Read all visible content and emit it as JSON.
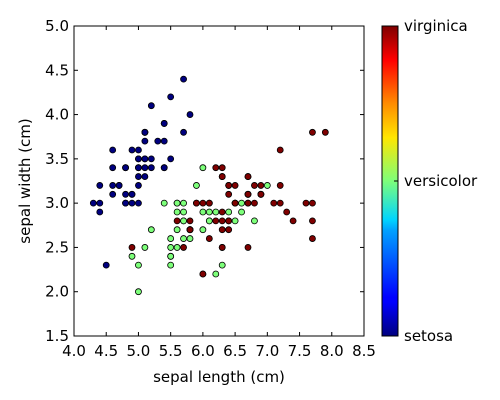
{
  "chart_data": {
    "type": "scatter",
    "title": "",
    "xlabel": "sepal length (cm)",
    "ylabel": "sepal width (cm)",
    "xlim": [
      4.0,
      8.5
    ],
    "ylim": [
      1.5,
      5.0
    ],
    "xticks": [
      "4.0",
      "4.5",
      "5.0",
      "5.5",
      "6.0",
      "6.5",
      "7.0",
      "7.5",
      "8.0",
      "8.5"
    ],
    "yticks": [
      "1.5",
      "2.0",
      "2.5",
      "3.0",
      "3.5",
      "4.0",
      "4.5",
      "5.0"
    ],
    "grid": false,
    "colormap": "jet",
    "colorbar": {
      "labels": [
        {
          "text": "setosa",
          "value": 0
        },
        {
          "text": "versicolor",
          "value": 1
        },
        {
          "text": "virginica",
          "value": 2
        }
      ]
    },
    "classes": [
      {
        "name": "setosa",
        "value": 0,
        "color": "#00007f"
      },
      {
        "name": "versicolor",
        "value": 1,
        "color": "#7dff7a"
      },
      {
        "name": "virginica",
        "value": 2,
        "color": "#7f0000"
      }
    ],
    "points": [
      {
        "x": 5.1,
        "y": 3.5,
        "c": 0
      },
      {
        "x": 4.9,
        "y": 3.0,
        "c": 0
      },
      {
        "x": 4.7,
        "y": 3.2,
        "c": 0
      },
      {
        "x": 4.6,
        "y": 3.1,
        "c": 0
      },
      {
        "x": 5.0,
        "y": 3.6,
        "c": 0
      },
      {
        "x": 5.4,
        "y": 3.9,
        "c": 0
      },
      {
        "x": 4.6,
        "y": 3.4,
        "c": 0
      },
      {
        "x": 5.0,
        "y": 3.4,
        "c": 0
      },
      {
        "x": 4.4,
        "y": 2.9,
        "c": 0
      },
      {
        "x": 4.9,
        "y": 3.1,
        "c": 0
      },
      {
        "x": 5.4,
        "y": 3.7,
        "c": 0
      },
      {
        "x": 4.8,
        "y": 3.4,
        "c": 0
      },
      {
        "x": 4.8,
        "y": 3.0,
        "c": 0
      },
      {
        "x": 4.3,
        "y": 3.0,
        "c": 0
      },
      {
        "x": 5.8,
        "y": 4.0,
        "c": 0
      },
      {
        "x": 5.7,
        "y": 4.4,
        "c": 0
      },
      {
        "x": 5.4,
        "y": 3.9,
        "c": 0
      },
      {
        "x": 5.1,
        "y": 3.5,
        "c": 0
      },
      {
        "x": 5.7,
        "y": 3.8,
        "c": 0
      },
      {
        "x": 5.1,
        "y": 3.8,
        "c": 0
      },
      {
        "x": 5.4,
        "y": 3.4,
        "c": 0
      },
      {
        "x": 5.1,
        "y": 3.7,
        "c": 0
      },
      {
        "x": 4.6,
        "y": 3.6,
        "c": 0
      },
      {
        "x": 5.1,
        "y": 3.3,
        "c": 0
      },
      {
        "x": 4.8,
        "y": 3.4,
        "c": 0
      },
      {
        "x": 5.0,
        "y": 3.0,
        "c": 0
      },
      {
        "x": 5.0,
        "y": 3.4,
        "c": 0
      },
      {
        "x": 5.2,
        "y": 3.5,
        "c": 0
      },
      {
        "x": 5.2,
        "y": 3.4,
        "c": 0
      },
      {
        "x": 4.7,
        "y": 3.2,
        "c": 0
      },
      {
        "x": 4.8,
        "y": 3.1,
        "c": 0
      },
      {
        "x": 5.4,
        "y": 3.4,
        "c": 0
      },
      {
        "x": 5.2,
        "y": 4.1,
        "c": 0
      },
      {
        "x": 5.5,
        "y": 4.2,
        "c": 0
      },
      {
        "x": 4.9,
        "y": 3.1,
        "c": 0
      },
      {
        "x": 5.0,
        "y": 3.2,
        "c": 0
      },
      {
        "x": 5.5,
        "y": 3.5,
        "c": 0
      },
      {
        "x": 4.9,
        "y": 3.6,
        "c": 0
      },
      {
        "x": 4.4,
        "y": 3.0,
        "c": 0
      },
      {
        "x": 5.1,
        "y": 3.4,
        "c": 0
      },
      {
        "x": 5.0,
        "y": 3.5,
        "c": 0
      },
      {
        "x": 4.5,
        "y": 2.3,
        "c": 0
      },
      {
        "x": 4.4,
        "y": 3.2,
        "c": 0
      },
      {
        "x": 5.0,
        "y": 3.5,
        "c": 0
      },
      {
        "x": 5.1,
        "y": 3.8,
        "c": 0
      },
      {
        "x": 4.8,
        "y": 3.0,
        "c": 0
      },
      {
        "x": 5.1,
        "y": 3.8,
        "c": 0
      },
      {
        "x": 4.6,
        "y": 3.2,
        "c": 0
      },
      {
        "x": 5.3,
        "y": 3.7,
        "c": 0
      },
      {
        "x": 5.0,
        "y": 3.3,
        "c": 0
      },
      {
        "x": 7.0,
        "y": 3.2,
        "c": 1
      },
      {
        "x": 6.4,
        "y": 3.2,
        "c": 1
      },
      {
        "x": 6.9,
        "y": 3.1,
        "c": 1
      },
      {
        "x": 5.5,
        "y": 2.3,
        "c": 1
      },
      {
        "x": 6.5,
        "y": 2.8,
        "c": 1
      },
      {
        "x": 5.7,
        "y": 2.8,
        "c": 1
      },
      {
        "x": 6.3,
        "y": 3.3,
        "c": 1
      },
      {
        "x": 4.9,
        "y": 2.4,
        "c": 1
      },
      {
        "x": 6.6,
        "y": 2.9,
        "c": 1
      },
      {
        "x": 5.2,
        "y": 2.7,
        "c": 1
      },
      {
        "x": 5.0,
        "y": 2.0,
        "c": 1
      },
      {
        "x": 5.9,
        "y": 3.0,
        "c": 1
      },
      {
        "x": 6.0,
        "y": 2.2,
        "c": 1
      },
      {
        "x": 6.1,
        "y": 2.9,
        "c": 1
      },
      {
        "x": 5.6,
        "y": 2.9,
        "c": 1
      },
      {
        "x": 6.7,
        "y": 3.1,
        "c": 1
      },
      {
        "x": 5.6,
        "y": 3.0,
        "c": 1
      },
      {
        "x": 5.8,
        "y": 2.7,
        "c": 1
      },
      {
        "x": 6.2,
        "y": 2.2,
        "c": 1
      },
      {
        "x": 5.6,
        "y": 2.5,
        "c": 1
      },
      {
        "x": 5.9,
        "y": 3.2,
        "c": 1
      },
      {
        "x": 6.1,
        "y": 2.8,
        "c": 1
      },
      {
        "x": 6.3,
        "y": 2.5,
        "c": 1
      },
      {
        "x": 6.1,
        "y": 2.8,
        "c": 1
      },
      {
        "x": 6.4,
        "y": 2.9,
        "c": 1
      },
      {
        "x": 6.6,
        "y": 3.0,
        "c": 1
      },
      {
        "x": 6.8,
        "y": 2.8,
        "c": 1
      },
      {
        "x": 6.7,
        "y": 3.0,
        "c": 1
      },
      {
        "x": 6.0,
        "y": 2.9,
        "c": 1
      },
      {
        "x": 5.7,
        "y": 2.6,
        "c": 1
      },
      {
        "x": 5.5,
        "y": 2.4,
        "c": 1
      },
      {
        "x": 5.5,
        "y": 2.4,
        "c": 1
      },
      {
        "x": 5.8,
        "y": 2.7,
        "c": 1
      },
      {
        "x": 6.0,
        "y": 2.7,
        "c": 1
      },
      {
        "x": 5.4,
        "y": 3.0,
        "c": 1
      },
      {
        "x": 6.0,
        "y": 3.4,
        "c": 1
      },
      {
        "x": 6.7,
        "y": 3.1,
        "c": 1
      },
      {
        "x": 6.3,
        "y": 2.3,
        "c": 1
      },
      {
        "x": 5.6,
        "y": 3.0,
        "c": 1
      },
      {
        "x": 5.5,
        "y": 2.5,
        "c": 1
      },
      {
        "x": 5.5,
        "y": 2.6,
        "c": 1
      },
      {
        "x": 6.1,
        "y": 3.0,
        "c": 1
      },
      {
        "x": 5.8,
        "y": 2.6,
        "c": 1
      },
      {
        "x": 5.0,
        "y": 2.3,
        "c": 1
      },
      {
        "x": 5.6,
        "y": 2.7,
        "c": 1
      },
      {
        "x": 5.7,
        "y": 3.0,
        "c": 1
      },
      {
        "x": 5.7,
        "y": 2.9,
        "c": 1
      },
      {
        "x": 6.2,
        "y": 2.9,
        "c": 1
      },
      {
        "x": 5.1,
        "y": 2.5,
        "c": 1
      },
      {
        "x": 5.7,
        "y": 2.8,
        "c": 1
      },
      {
        "x": 6.3,
        "y": 3.3,
        "c": 2
      },
      {
        "x": 5.8,
        "y": 2.7,
        "c": 2
      },
      {
        "x": 7.1,
        "y": 3.0,
        "c": 2
      },
      {
        "x": 6.3,
        "y": 2.9,
        "c": 2
      },
      {
        "x": 6.5,
        "y": 3.0,
        "c": 2
      },
      {
        "x": 7.6,
        "y": 3.0,
        "c": 2
      },
      {
        "x": 4.9,
        "y": 2.5,
        "c": 2
      },
      {
        "x": 7.3,
        "y": 2.9,
        "c": 2
      },
      {
        "x": 6.7,
        "y": 2.5,
        "c": 2
      },
      {
        "x": 7.2,
        "y": 3.6,
        "c": 2
      },
      {
        "x": 6.5,
        "y": 3.2,
        "c": 2
      },
      {
        "x": 6.4,
        "y": 2.7,
        "c": 2
      },
      {
        "x": 6.8,
        "y": 3.0,
        "c": 2
      },
      {
        "x": 5.7,
        "y": 2.5,
        "c": 2
      },
      {
        "x": 5.8,
        "y": 2.8,
        "c": 2
      },
      {
        "x": 6.4,
        "y": 3.2,
        "c": 2
      },
      {
        "x": 6.5,
        "y": 3.0,
        "c": 2
      },
      {
        "x": 7.7,
        "y": 3.8,
        "c": 2
      },
      {
        "x": 7.7,
        "y": 2.6,
        "c": 2
      },
      {
        "x": 6.0,
        "y": 2.2,
        "c": 2
      },
      {
        "x": 6.9,
        "y": 3.2,
        "c": 2
      },
      {
        "x": 5.6,
        "y": 2.8,
        "c": 2
      },
      {
        "x": 7.7,
        "y": 2.8,
        "c": 2
      },
      {
        "x": 6.3,
        "y": 2.7,
        "c": 2
      },
      {
        "x": 6.7,
        "y": 3.3,
        "c": 2
      },
      {
        "x": 7.2,
        "y": 3.2,
        "c": 2
      },
      {
        "x": 6.2,
        "y": 2.8,
        "c": 2
      },
      {
        "x": 6.1,
        "y": 3.0,
        "c": 2
      },
      {
        "x": 6.4,
        "y": 2.8,
        "c": 2
      },
      {
        "x": 7.2,
        "y": 3.0,
        "c": 2
      },
      {
        "x": 7.4,
        "y": 2.8,
        "c": 2
      },
      {
        "x": 7.9,
        "y": 3.8,
        "c": 2
      },
      {
        "x": 6.4,
        "y": 2.8,
        "c": 2
      },
      {
        "x": 6.3,
        "y": 2.8,
        "c": 2
      },
      {
        "x": 6.1,
        "y": 2.6,
        "c": 2
      },
      {
        "x": 7.7,
        "y": 3.0,
        "c": 2
      },
      {
        "x": 6.3,
        "y": 3.4,
        "c": 2
      },
      {
        "x": 6.4,
        "y": 3.1,
        "c": 2
      },
      {
        "x": 6.0,
        "y": 3.0,
        "c": 2
      },
      {
        "x": 6.9,
        "y": 3.1,
        "c": 2
      },
      {
        "x": 6.7,
        "y": 3.1,
        "c": 2
      },
      {
        "x": 6.9,
        "y": 3.1,
        "c": 2
      },
      {
        "x": 5.8,
        "y": 2.7,
        "c": 2
      },
      {
        "x": 6.8,
        "y": 3.2,
        "c": 2
      },
      {
        "x": 6.7,
        "y": 3.3,
        "c": 2
      },
      {
        "x": 6.7,
        "y": 3.0,
        "c": 2
      },
      {
        "x": 6.3,
        "y": 2.5,
        "c": 2
      },
      {
        "x": 6.5,
        "y": 3.0,
        "c": 2
      },
      {
        "x": 6.2,
        "y": 3.4,
        "c": 2
      },
      {
        "x": 5.9,
        "y": 3.0,
        "c": 2
      }
    ]
  }
}
